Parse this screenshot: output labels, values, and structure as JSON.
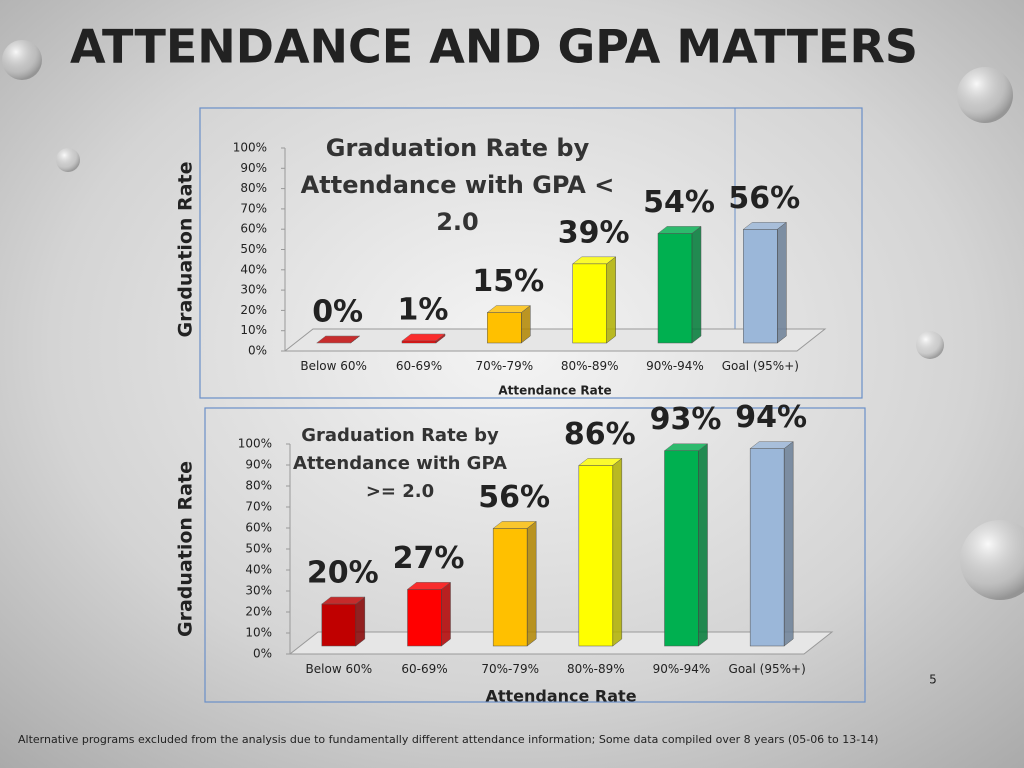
{
  "title": "ATTENDANCE AND GPA MATTERS",
  "footnote": "Alternative programs excluded from the analysis due to fundamentally different attendance information; Some data compiled over 8 years (05-06 to 13-14)",
  "page_number": 5,
  "chart_data": [
    {
      "type": "bar",
      "title": "Graduation Rate by Attendance with GPA < 2.0",
      "y_label": "Graduation Rate",
      "x_label": "Attendance Rate",
      "categories": [
        "Below 60%",
        "60-69%",
        "70%-79%",
        "80%-89%",
        "90%-94%",
        "Goal (95%+)"
      ],
      "values": [
        0,
        1,
        15,
        39,
        54,
        56
      ],
      "value_labels": [
        "0%",
        "1%",
        "15%",
        "39%",
        "54%",
        "56%"
      ],
      "colors": [
        "#c00000",
        "#ff0000",
        "#ffc000",
        "#ffff00",
        "#00b050",
        "#9bb7d9"
      ],
      "ylim": [
        0,
        100
      ],
      "yticks": [
        {
          "value": 0,
          "label": "0%"
        },
        {
          "value": 10,
          "label": "10%"
        },
        {
          "value": 20,
          "label": "20%"
        },
        {
          "value": 30,
          "label": "30%"
        },
        {
          "value": 40,
          "label": "40%"
        },
        {
          "value": 50,
          "label": "50%"
        },
        {
          "value": 60,
          "label": "60%"
        },
        {
          "value": 70,
          "label": "70%"
        },
        {
          "value": 80,
          "label": "80%"
        },
        {
          "value": 90,
          "label": "90%"
        },
        {
          "value": 100,
          "label": "100%"
        }
      ]
    },
    {
      "type": "bar",
      "title": "Graduation Rate by Attendance with GPA >= 2.0",
      "y_label": "Graduation Rate",
      "x_label": "Attendance Rate",
      "categories": [
        "Below 60%",
        "60-69%",
        "70%-79%",
        "80%-89%",
        "90%-94%",
        "Goal (95%+)"
      ],
      "values": [
        20,
        27,
        56,
        86,
        93,
        94
      ],
      "value_labels": [
        "20%",
        "27%",
        "56%",
        "86%",
        "93%",
        "94%"
      ],
      "colors": [
        "#c00000",
        "#ff0000",
        "#ffc000",
        "#ffff00",
        "#00b050",
        "#9bb7d9"
      ],
      "ylim": [
        0,
        100
      ],
      "yticks": [
        {
          "value": 0,
          "label": "0%"
        },
        {
          "value": 10,
          "label": "10%"
        },
        {
          "value": 20,
          "label": "20%"
        },
        {
          "value": 30,
          "label": "30%"
        },
        {
          "value": 40,
          "label": "40%"
        },
        {
          "value": 50,
          "label": "50%"
        },
        {
          "value": 60,
          "label": "60%"
        },
        {
          "value": 70,
          "label": "70%"
        },
        {
          "value": 80,
          "label": "80%"
        },
        {
          "value": 90,
          "label": "90%"
        },
        {
          "value": 100,
          "label": "100%"
        }
      ]
    }
  ]
}
